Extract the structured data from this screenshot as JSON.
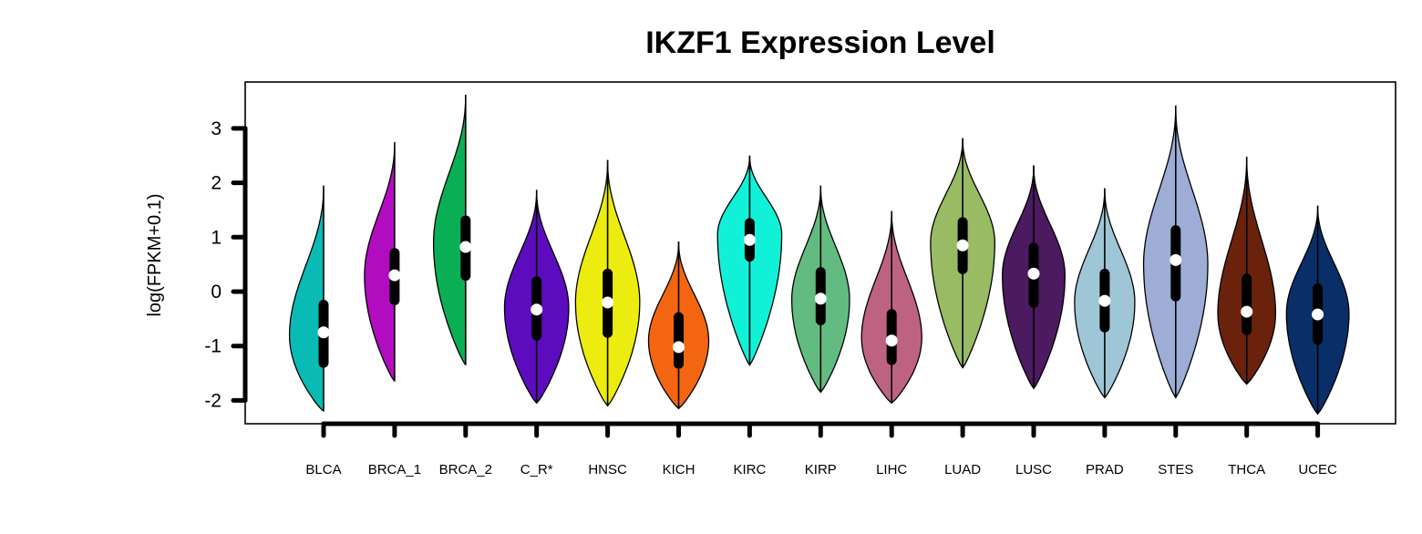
{
  "chart_data": {
    "type": "violin",
    "title": "IKZF1 Expression Level",
    "xlabel": "",
    "ylabel": "log(FPKM+0.1)",
    "ylim": [
      -2.3,
      3.85
    ],
    "yticks": [
      -2,
      -1,
      0,
      1,
      2,
      3
    ],
    "ytick_labels": [
      "-2",
      "-1",
      "0",
      "1",
      "2",
      "3"
    ],
    "grid": false,
    "legend": "none",
    "categories": [
      "BLCA",
      "BRCA_1",
      "BRCA_2",
      "C_R*",
      "HNSC",
      "KICH",
      "KIRC",
      "KIRP",
      "LIHC",
      "LUAD",
      "LUSC",
      "PRAD",
      "STES",
      "THCA",
      "UCEC"
    ],
    "series": [
      {
        "category": "BLCA",
        "color": "#0ABAB5",
        "min": -2.2,
        "max": 1.95,
        "mode": -0.8,
        "half_width": 0.85,
        "q1": -1.4,
        "median": -0.75,
        "q3": -0.15
      },
      {
        "category": "BRCA_1",
        "color": "#B20CC0",
        "min": -1.65,
        "max": 2.75,
        "mode": 0.3,
        "half_width": 0.75,
        "q1": -0.25,
        "median": 0.3,
        "q3": 0.8
      },
      {
        "category": "BRCA_2",
        "color": "#0AAF55",
        "min": -1.35,
        "max": 3.62,
        "mode": 0.9,
        "half_width": 0.8,
        "q1": 0.2,
        "median": 0.82,
        "q3": 1.4
      },
      {
        "category": "C_R*",
        "color": "#5D0BBE",
        "min": -2.05,
        "max": 1.87,
        "mode": -0.3,
        "half_width": 0.8,
        "q1": -0.9,
        "median": -0.33,
        "q3": 0.28
      },
      {
        "category": "HNSC",
        "color": "#EDEC10",
        "min": -2.1,
        "max": 2.42,
        "mode": -0.2,
        "half_width": 0.8,
        "q1": -0.85,
        "median": -0.2,
        "q3": 0.42
      },
      {
        "category": "KICH",
        "color": "#F46512",
        "min": -2.15,
        "max": 0.92,
        "mode": -0.9,
        "half_width": 0.75,
        "q1": -1.42,
        "median": -1.02,
        "q3": -0.38
      },
      {
        "category": "KIRC",
        "color": "#11F1D8",
        "min": -1.35,
        "max": 2.5,
        "mode": 1.05,
        "half_width": 0.8,
        "q1": 0.55,
        "median": 0.95,
        "q3": 1.35
      },
      {
        "category": "KIRP",
        "color": "#62BC82",
        "min": -1.85,
        "max": 1.95,
        "mode": -0.15,
        "half_width": 0.72,
        "q1": -0.62,
        "median": -0.13,
        "q3": 0.45
      },
      {
        "category": "LIHC",
        "color": "#BD6381",
        "min": -2.05,
        "max": 1.48,
        "mode": -0.85,
        "half_width": 0.75,
        "q1": -1.35,
        "median": -0.9,
        "q3": -0.32
      },
      {
        "category": "LUAD",
        "color": "#98BB64",
        "min": -1.4,
        "max": 2.82,
        "mode": 0.9,
        "half_width": 0.8,
        "q1": 0.32,
        "median": 0.85,
        "q3": 1.37
      },
      {
        "category": "LUSC",
        "color": "#4C1A60",
        "min": -1.78,
        "max": 2.32,
        "mode": 0.3,
        "half_width": 0.78,
        "q1": -0.3,
        "median": 0.33,
        "q3": 0.9
      },
      {
        "category": "PRAD",
        "color": "#9FC6D6",
        "min": -1.95,
        "max": 1.9,
        "mode": -0.2,
        "half_width": 0.75,
        "q1": -0.75,
        "median": -0.17,
        "q3": 0.42
      },
      {
        "category": "STES",
        "color": "#9DADD6",
        "min": -1.95,
        "max": 3.42,
        "mode": 0.5,
        "half_width": 0.8,
        "q1": -0.18,
        "median": 0.58,
        "q3": 1.22
      },
      {
        "category": "THCA",
        "color": "#6A220D",
        "min": -1.7,
        "max": 2.48,
        "mode": -0.4,
        "half_width": 0.72,
        "q1": -0.8,
        "median": -0.37,
        "q3": 0.33
      },
      {
        "category": "UCEC",
        "color": "#0A2E68",
        "min": -2.25,
        "max": 1.58,
        "mode": -0.4,
        "half_width": 0.78,
        "q1": -0.98,
        "median": -0.42,
        "q3": 0.15
      }
    ]
  }
}
